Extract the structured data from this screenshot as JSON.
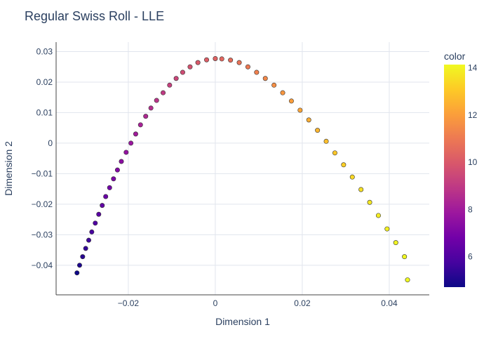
{
  "chart_data": {
    "type": "scatter",
    "title": "Regular Swiss Roll - LLE",
    "xlabel": "Dimension 1",
    "ylabel": "Dimension 2",
    "xlim": [
      -0.0366,
      0.0492
    ],
    "ylim": [
      -0.0497,
      0.0331
    ],
    "x_ticks": [
      -0.02,
      0,
      0.02,
      0.04
    ],
    "x_tick_labels": [
      "−0.02",
      "0",
      "0.02",
      "0.04"
    ],
    "y_ticks": [
      -0.04,
      -0.03,
      -0.02,
      -0.01,
      0,
      0.01,
      0.02,
      0.03
    ],
    "y_tick_labels": [
      "−0.04",
      "−0.03",
      "−0.02",
      "−0.01",
      "0",
      "0.01",
      "0.02",
      "0.03"
    ],
    "grid": true,
    "colorbar": {
      "title": "color",
      "range": [
        4.71,
        14.14
      ],
      "ticks": [
        6,
        8,
        10,
        12,
        14
      ],
      "tick_labels": [
        "6",
        "8",
        "10",
        "12",
        "14"
      ],
      "colorscale": "plasma"
    },
    "series": [
      {
        "x": [
          -0.0318,
          -0.0312,
          -0.0305,
          -0.0298,
          -0.0291,
          -0.0284,
          -0.0276,
          -0.0268,
          -0.026,
          -0.0252,
          -0.0243,
          -0.0234,
          -0.0225,
          -0.0216,
          -0.0205,
          -0.0194,
          -0.0183,
          -0.0172,
          -0.016,
          -0.0148,
          -0.0135,
          -0.012,
          -0.0105,
          -0.009,
          -0.0075,
          -0.0058,
          -0.004,
          -0.002,
          0.0,
          0.0015,
          0.0035,
          0.0055,
          0.0075,
          0.0095,
          0.0115,
          0.0135,
          0.0155,
          0.0175,
          0.0195,
          0.0215,
          0.0235,
          0.0255,
          0.0275,
          0.0295,
          0.0315,
          0.0335,
          0.0355,
          0.0375,
          0.0395,
          0.0415,
          0.0435,
          0.0442
        ],
        "y": [
          -0.0425,
          -0.04,
          -0.0372,
          -0.0345,
          -0.0318,
          -0.0291,
          -0.0262,
          -0.0233,
          -0.0204,
          -0.0175,
          -0.0146,
          -0.0117,
          -0.0088,
          -0.006,
          -0.003,
          0.0,
          0.003,
          0.006,
          0.0088,
          0.0115,
          0.014,
          0.0165,
          0.019,
          0.0212,
          0.0232,
          0.025,
          0.0264,
          0.0273,
          0.0277,
          0.0276,
          0.0272,
          0.0264,
          0.025,
          0.0232,
          0.0212,
          0.019,
          0.0165,
          0.0138,
          0.0108,
          0.0076,
          0.0042,
          0.0006,
          -0.0032,
          -0.0071,
          -0.0111,
          -0.0152,
          -0.0194,
          -0.0237,
          -0.0281,
          -0.0326,
          -0.0372,
          -0.0448
        ],
        "color": [
          4.75,
          5.0,
          5.2,
          5.4,
          5.6,
          5.8,
          6.0,
          6.2,
          6.4,
          6.6,
          6.8,
          7.0,
          7.2,
          7.4,
          7.6,
          7.8,
          8.0,
          8.2,
          8.4,
          8.6,
          8.8,
          9.0,
          9.2,
          9.4,
          9.6,
          9.8,
          10.0,
          10.15,
          10.3,
          10.45,
          10.6,
          10.8,
          11.0,
          11.2,
          11.4,
          11.6,
          11.8,
          12.0,
          12.2,
          12.4,
          12.6,
          12.8,
          13.0,
          13.2,
          13.4,
          13.6,
          13.75,
          13.85,
          13.95,
          14.03,
          14.1,
          14.14
        ]
      }
    ]
  }
}
